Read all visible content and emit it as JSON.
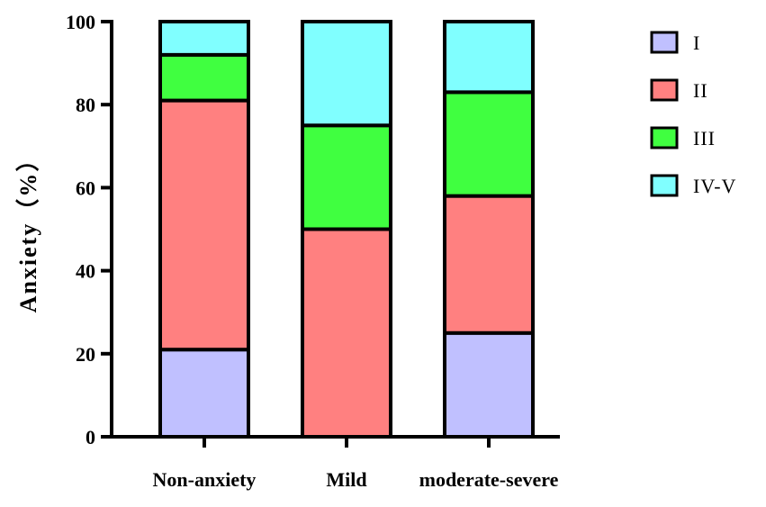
{
  "chart_data": {
    "type": "bar",
    "stacked": true,
    "categories": [
      "Non-anxiety",
      "Mild",
      "moderate-severe"
    ],
    "series": [
      {
        "name": "I",
        "color": "#c0c0ff",
        "values": [
          21,
          0,
          25
        ]
      },
      {
        "name": "II",
        "color": "#ff8080",
        "values": [
          60,
          50,
          33
        ]
      },
      {
        "name": "III",
        "color": "#40ff40",
        "values": [
          11,
          25,
          25
        ]
      },
      {
        "name": "IV-V",
        "color": "#80ffff",
        "values": [
          8,
          25,
          17
        ]
      }
    ],
    "ylabel": "Anxiety（%）",
    "ylim": [
      0,
      100
    ],
    "yticks": [
      0,
      20,
      40,
      60,
      80,
      100
    ],
    "grid": false,
    "legend": "right"
  }
}
